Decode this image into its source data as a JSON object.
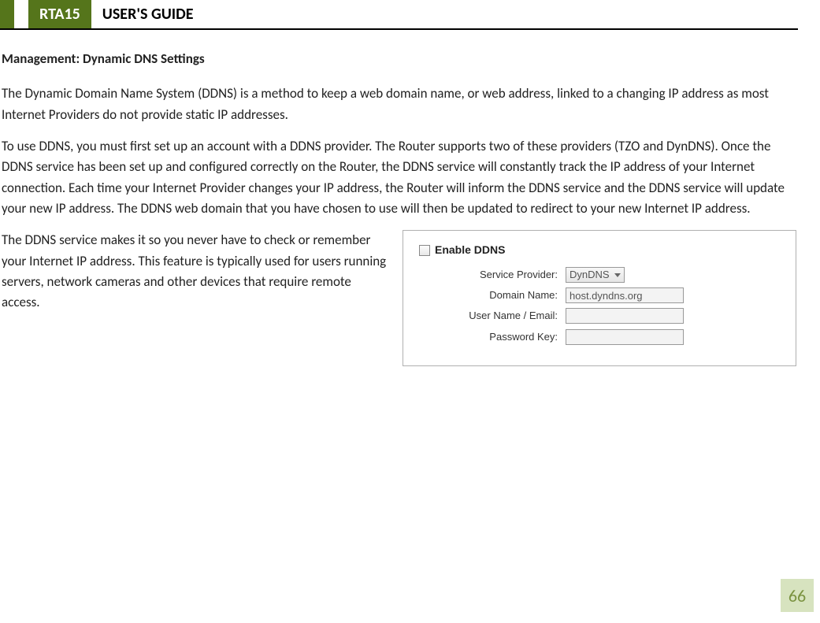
{
  "header": {
    "product": "RTA15",
    "title": "USER'S GUIDE"
  },
  "content": {
    "section_heading": "Management: Dynamic DNS Settings",
    "para1": "The Dynamic Domain Name System (DDNS) is a method to keep a web domain name, or web address, linked to a changing IP address as most Internet Providers do not provide static IP addresses.",
    "para2": "To use DDNS, you must first set up an account with a DDNS provider.  The Router supports two of these providers (TZO and DynDNS).  Once the DDNS service has been set up and configured correctly on the Router, the DDNS service will constantly track the IP address of your Internet connection.  Each time your Internet Provider changes your IP address, the Router will inform the DDNS service and the DDNS service will update your new IP address.  The DDNS web domain that you have chosen to use will then be updated to redirect to your new Internet IP address.",
    "para3": "The DDNS service makes it so you never have to check or remember your Internet IP address.  This feature is typically used for users running servers, network cameras and other devices that require remote access."
  },
  "panel": {
    "enable_label": "Enable DDNS",
    "provider_label": "Service Provider:",
    "provider_value": "DynDNS",
    "domain_label": "Domain Name:",
    "domain_value": "host.dyndns.org",
    "user_label": "User Name / Email:",
    "user_value": "",
    "password_label": "Password Key:",
    "password_value": ""
  },
  "page_number": "66",
  "colors": {
    "accent_green": "#55751b",
    "page_box_bg": "#d7e3bf",
    "page_box_text": "#7a923f"
  }
}
